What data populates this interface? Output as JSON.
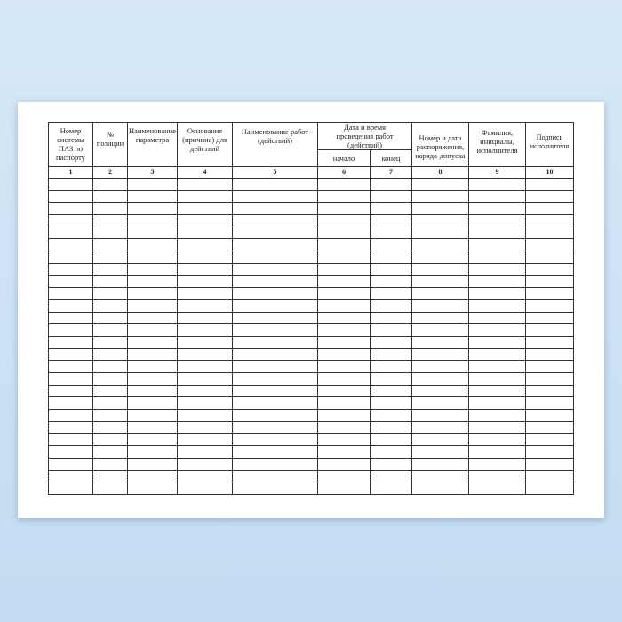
{
  "columns": [
    {
      "label": "Номер системы ПАЗ по паспорту",
      "number": "1"
    },
    {
      "label": "№ позиции",
      "number": "2"
    },
    {
      "label": "Наименование параметра",
      "number": "3"
    },
    {
      "label": "Основание (причина) для действий",
      "number": "4"
    },
    {
      "label": "Наименование работ (действий)",
      "number": "5"
    },
    {
      "label": "Дата и время проведения работ (действий)",
      "sub": [
        "начало",
        "конец"
      ],
      "number": [
        "6",
        "7"
      ]
    },
    {
      "label": "Номер и дата распоряжения, наряда-допуска",
      "number": "8"
    },
    {
      "label": "Фамилия, инициалы, исполнителя",
      "number": "9"
    },
    {
      "label": "Подпись исполнителя",
      "number": "10"
    }
  ],
  "colors": {
    "background": "#cfe3f5",
    "paper": "#ffffff",
    "lines": "#333333"
  }
}
